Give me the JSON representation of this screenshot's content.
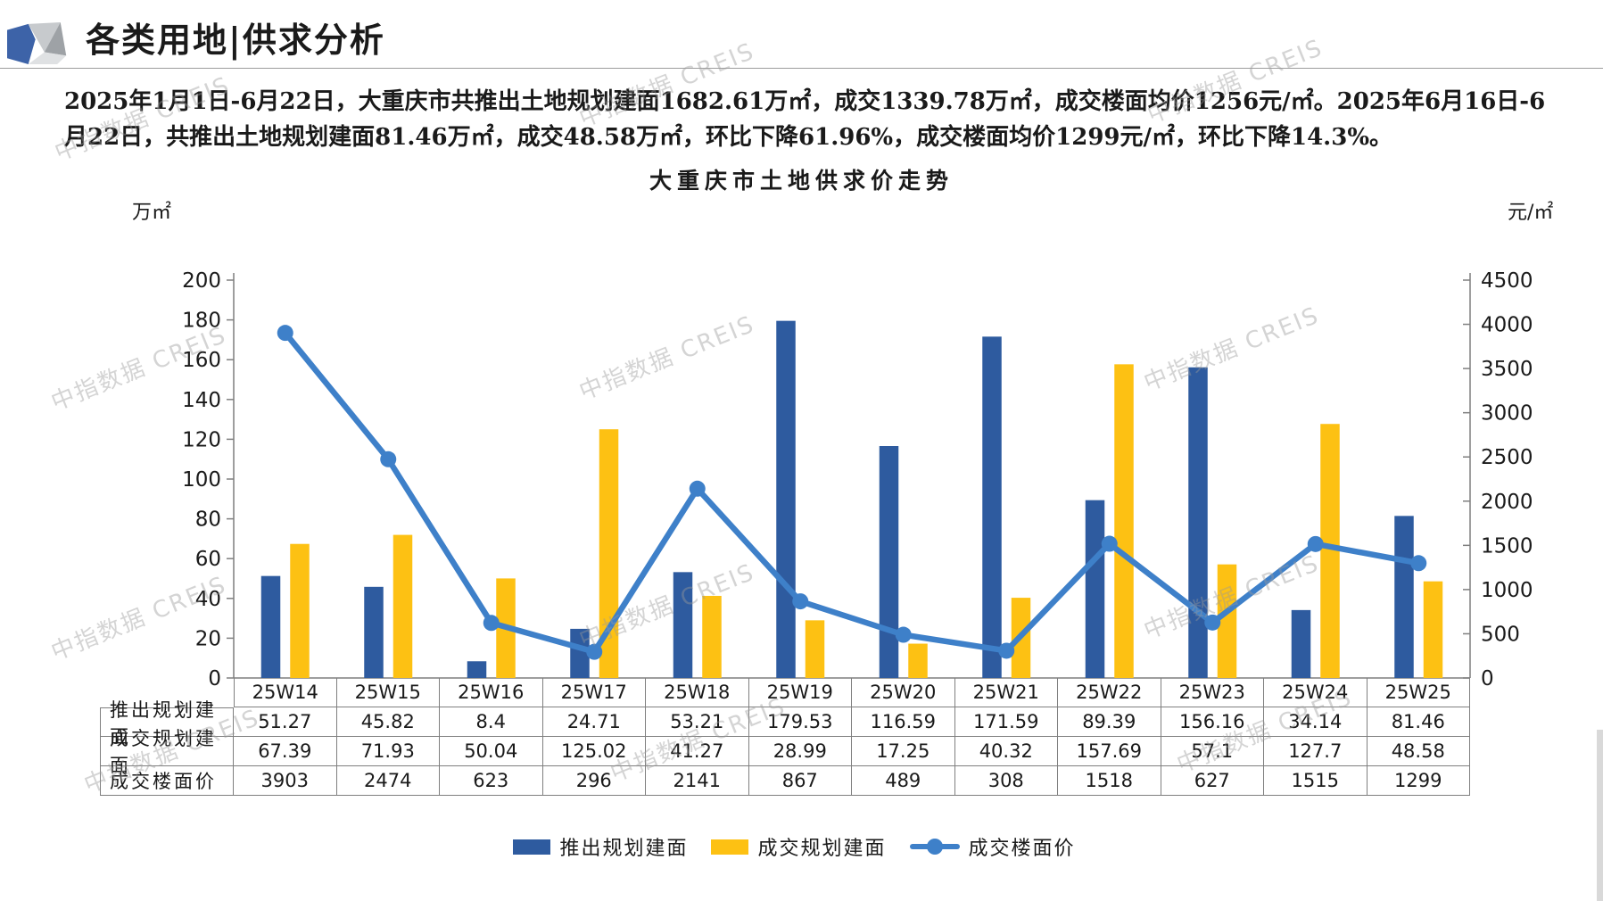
{
  "header": {
    "title": "各类用地|供求分析"
  },
  "summary": "2025年1月1日-6月22日，大重庆市共推出土地规划建面1682.61万㎡，成交1339.78万㎡，成交楼面均价1256元/㎡。2025年6月16日-6月22日，共推出土地规划建面81.46万㎡，成交48.58万㎡，环比下降61.96%，成交楼面均价1299元/㎡，环比下降14.3%。",
  "watermark": {
    "text": "中指数据 CREIS"
  },
  "chart_data": {
    "type": "combo-bar-line",
    "title": "大重庆市土地供求价走势",
    "categories": [
      "25W14",
      "25W15",
      "25W16",
      "25W17",
      "25W18",
      "25W19",
      "25W20",
      "25W21",
      "25W22",
      "25W23",
      "25W24",
      "25W25"
    ],
    "left_axis": {
      "unit": "万㎡",
      "min": 0,
      "max": 200,
      "step": 20,
      "ticks": [
        0,
        20,
        40,
        60,
        80,
        100,
        120,
        140,
        160,
        180,
        200
      ]
    },
    "right_axis": {
      "unit": "元/㎡",
      "min": 0,
      "max": 4500,
      "step": 500,
      "ticks": [
        0,
        500,
        1000,
        1500,
        2000,
        2500,
        3000,
        3500,
        4000,
        4500
      ]
    },
    "series": [
      {
        "name": "推出规划建面",
        "type": "bar",
        "axis": "left",
        "color": "#2E5B9F",
        "values": [
          51.27,
          45.82,
          8.4,
          24.71,
          53.21,
          179.53,
          116.59,
          171.59,
          89.39,
          156.16,
          34.14,
          81.46
        ]
      },
      {
        "name": "成交规划建面",
        "type": "bar",
        "axis": "left",
        "color": "#FDC113",
        "values": [
          67.39,
          71.93,
          50.04,
          125.02,
          41.27,
          28.99,
          17.25,
          40.32,
          157.69,
          57.1,
          127.7,
          48.58
        ]
      },
      {
        "name": "成交楼面价",
        "type": "line",
        "axis": "right",
        "color": "#3E80C9",
        "values": [
          3903,
          2474,
          623,
          296,
          2141,
          867,
          489,
          308,
          1518,
          627,
          1515,
          1299
        ]
      }
    ],
    "legend_position": "bottom",
    "grid": false
  },
  "table": {
    "row_labels": [
      "推出规划建面",
      "成交规划建面",
      "成交楼面价"
    ],
    "columns": [
      "25W14",
      "25W15",
      "25W16",
      "25W17",
      "25W18",
      "25W19",
      "25W20",
      "25W21",
      "25W22",
      "25W23",
      "25W24",
      "25W25"
    ],
    "rows": [
      [
        "51.27",
        "45.82",
        "8.4",
        "24.71",
        "53.21",
        "179.53",
        "116.59",
        "171.59",
        "89.39",
        "156.16",
        "34.14",
        "81.46"
      ],
      [
        "67.39",
        "71.93",
        "50.04",
        "125.02",
        "41.27",
        "28.99",
        "17.25",
        "40.32",
        "157.69",
        "57.1",
        "127.7",
        "48.58"
      ],
      [
        "3903",
        "2474",
        "623",
        "296",
        "2141",
        "867",
        "489",
        "308",
        "1518",
        "627",
        "1515",
        "1299"
      ]
    ]
  }
}
